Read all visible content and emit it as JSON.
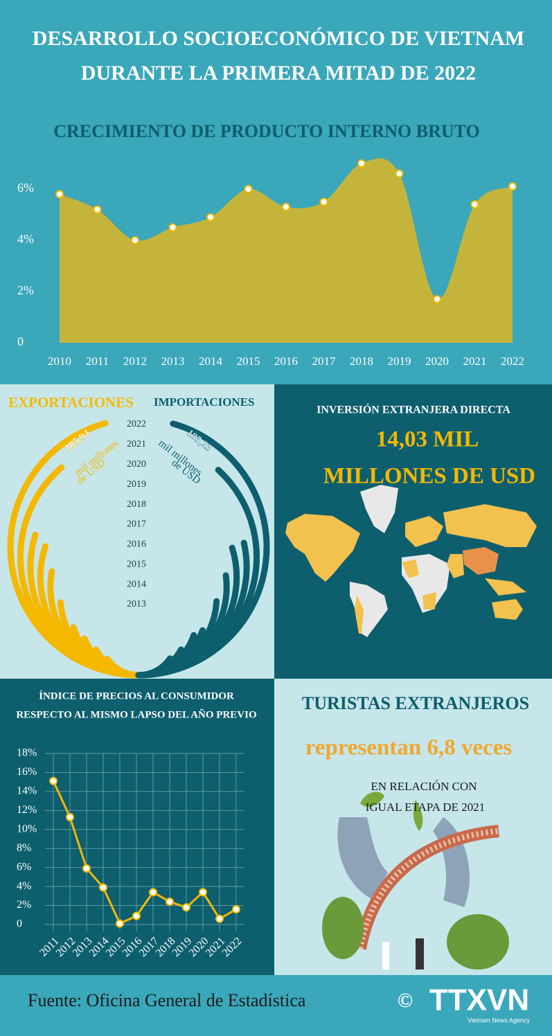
{
  "header": {
    "title_line1": "DESARROLLO SOCIOECONÓMICO DE VIETNAM",
    "title_line2": "DURANTE LA PRIMERA MITAD DE 2022"
  },
  "chart_data": [
    {
      "type": "area",
      "title": "CRECIMIENTO DE PRODUCTO INTERNO BRUTO",
      "categories": [
        "2010",
        "2011",
        "2012",
        "2013",
        "2014",
        "2015",
        "2016",
        "2017",
        "2018",
        "2019",
        "2020",
        "2021",
        "2022"
      ],
      "values": [
        5.8,
        5.2,
        4.0,
        4.5,
        4.9,
        6.0,
        5.3,
        5.5,
        7.0,
        6.6,
        1.7,
        5.4,
        6.1
      ],
      "color": "#c4b43c",
      "marker_color": "#f5b800",
      "ylim": [
        0,
        8
      ],
      "yticks": [
        0,
        {
          "value": 2,
          "label": "2%"
        },
        {
          "value": 4,
          "label": "4%"
        },
        {
          "value": 6,
          "label": "6%"
        }
      ],
      "grid": false
    },
    {
      "type": "radial_bar",
      "categories": [
        "2013",
        "2014",
        "2015",
        "2016",
        "2017",
        "2018",
        "2019",
        "2020",
        "2021",
        "2022"
      ],
      "series": [
        {
          "name": "EXPORTACIONES",
          "color": "#f5b800",
          "values": [
            62,
            70,
            77,
            82,
            97,
            113,
            122,
            121,
            157,
            185.94
          ],
          "value_labels": [
            null,
            null,
            null,
            null,
            null,
            null,
            null,
            null,
            null,
            "185,94"
          ]
        },
        {
          "name": "IMPORTACIONES",
          "color": "#0d5f6e",
          "values": [
            63,
            70,
            81,
            79,
            98,
            110,
            121,
            116,
            155,
            185.23
          ],
          "value_labels": [
            null,
            null,
            null,
            null,
            null,
            null,
            null,
            null,
            null,
            "185,23"
          ]
        }
      ],
      "unit_label": [
        "mil millones",
        "de USD"
      ]
    },
    {
      "type": "line",
      "title": [
        "ÍNDICE DE PRECIOS AL CONSUMIDOR",
        "RESPECTO AL MISMO LAPSO DEL AÑO PREVIO"
      ],
      "categories": [
        "2011",
        "2012",
        "2013",
        "2014",
        "2015",
        "2016",
        "2017",
        "2018",
        "2019",
        "2020",
        "2021",
        "2022"
      ],
      "values": [
        15.1,
        11.3,
        5.9,
        3.9,
        0.1,
        0.9,
        3.4,
        2.4,
        1.8,
        3.4,
        0.6,
        1.6
      ],
      "color": "#f5b800",
      "ylim": [
        0,
        18
      ],
      "yticks": [
        0,
        {
          "value": 2,
          "label": "2%"
        },
        {
          "value": 4,
          "label": "4%"
        },
        {
          "value": 6,
          "label": "6%"
        },
        {
          "value": 8,
          "label": "8%"
        },
        {
          "value": 10,
          "label": "10%"
        },
        {
          "value": 12,
          "label": "12%"
        },
        {
          "value": 14,
          "label": "14%"
        },
        {
          "value": 16,
          "label": "16%"
        },
        {
          "value": 18,
          "label": "18%"
        }
      ],
      "grid": true
    }
  ],
  "fdi": {
    "title": "INVERSIÓN EXTRANJERA DIRECTA",
    "value_line1": "14,03 MIL",
    "value_line2": "MILLONES DE USD"
  },
  "tourism": {
    "title": "TURISTAS EXTRANJEROS",
    "headline": "representan 6,8 veces",
    "note_line1": "EN RELACIÓN CON",
    "note_line2": "IGUAL ETAPA DE 2021"
  },
  "footer": {
    "source": "Fuente: Oficina General de Estadística",
    "copyright": "©",
    "logo": "TTXVN",
    "agency": "Vietnam News Agency"
  }
}
